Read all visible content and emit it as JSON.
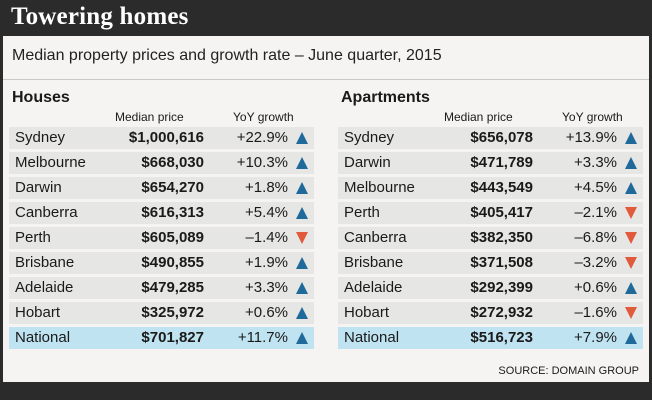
{
  "title": "Towering homes",
  "subtitle": "Median property prices and growth rate – June quarter, 2015",
  "column_headers": {
    "price": "Median price",
    "growth": "YoY growth"
  },
  "colors": {
    "up_arrow": "#1f6a9a",
    "down_arrow": "#e15a3c",
    "national_row": "#bfe3f1",
    "row": "#e6e6e4",
    "background": "#2b2b2b"
  },
  "houses": {
    "label": "Houses",
    "rows": [
      {
        "city": "Sydney",
        "price": "$1,000,616",
        "growth": "+22.9%",
        "trend": "up"
      },
      {
        "city": "Melbourne",
        "price": "$668,030",
        "growth": "+10.3%",
        "trend": "up"
      },
      {
        "city": "Darwin",
        "price": "$654,270",
        "growth": "+1.8%",
        "trend": "up"
      },
      {
        "city": "Canberra",
        "price": "$616,313",
        "growth": "+5.4%",
        "trend": "up"
      },
      {
        "city": "Perth",
        "price": "$605,089",
        "growth": "–1.4%",
        "trend": "down"
      },
      {
        "city": "Brisbane",
        "price": "$490,855",
        "growth": "+1.9%",
        "trend": "up"
      },
      {
        "city": "Adelaide",
        "price": "$479,285",
        "growth": "+3.3%",
        "trend": "up"
      },
      {
        "city": "Hobart",
        "price": "$325,972",
        "growth": "+0.6%",
        "trend": "up"
      },
      {
        "city": "National",
        "price": "$701,827",
        "growth": "+11.7%",
        "trend": "up",
        "national": true
      }
    ]
  },
  "apartments": {
    "label": "Apartments",
    "rows": [
      {
        "city": "Sydney",
        "price": "$656,078",
        "growth": "+13.9%",
        "trend": "up"
      },
      {
        "city": "Darwin",
        "price": "$471,789",
        "growth": "+3.3%",
        "trend": "up"
      },
      {
        "city": "Melbourne",
        "price": "$443,549",
        "growth": "+4.5%",
        "trend": "up"
      },
      {
        "city": "Perth",
        "price": "$405,417",
        "growth": "–2.1%",
        "trend": "down"
      },
      {
        "city": "Canberra",
        "price": "$382,350",
        "growth": "–6.8%",
        "trend": "down"
      },
      {
        "city": "Brisbane",
        "price": "$371,508",
        "growth": "–3.2%",
        "trend": "down"
      },
      {
        "city": "Adelaide",
        "price": "$292,399",
        "growth": "+0.6%",
        "trend": "up"
      },
      {
        "city": "Hobart",
        "price": "$272,932",
        "growth": "–1.6%",
        "trend": "down"
      },
      {
        "city": "National",
        "price": "$516,723",
        "growth": "+7.9%",
        "trend": "up",
        "national": true
      }
    ]
  },
  "source": "SOURCE: DOMAIN GROUP"
}
